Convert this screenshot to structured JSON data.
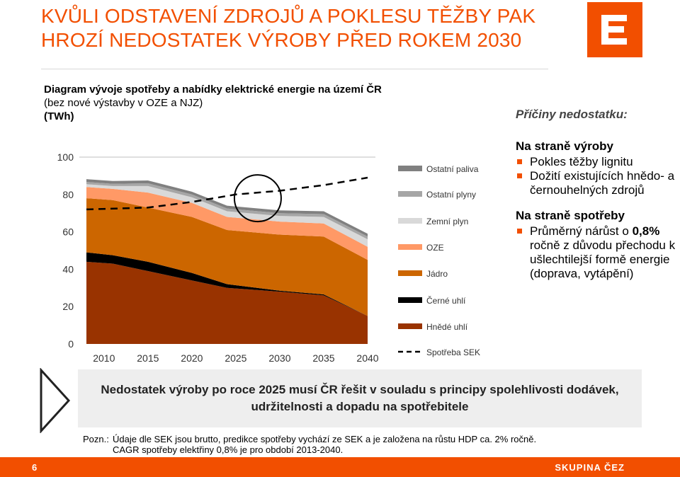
{
  "header": {
    "title_line1": "KVŮLI ODSTAVENÍ ZDROJŮ A POKLESU TĚŽBY PAK",
    "title_line2": "HROZÍ NEDOSTATEK VÝROBY PŘED ROKEM 2030",
    "logo_icon": "cez-logo-icon"
  },
  "chart_caption": {
    "line1": "Diagram vývoje spotřeby a nabídky elektrické energie na území ČR",
    "line2": "(bez nové výstavby v OZE a NJZ)",
    "unit": "(TWh)"
  },
  "chart_data": {
    "type": "area",
    "stacked": true,
    "x": [
      2008,
      2011,
      2015,
      2020,
      2024,
      2030,
      2035,
      2040
    ],
    "xticks": [
      "2010",
      "2015",
      "2020",
      "2025",
      "2030",
      "2035",
      "2040"
    ],
    "ylim": [
      0,
      100
    ],
    "yticks": [
      "0",
      "20",
      "40",
      "60",
      "80",
      "100"
    ],
    "grid": false,
    "legend_position": "right",
    "series": [
      {
        "name": "Hnědé uhlí",
        "color": "#993300",
        "values": [
          44,
          43,
          39,
          34,
          30,
          28,
          26,
          15
        ]
      },
      {
        "name": "Černé uhlí",
        "color": "#000000",
        "values": [
          5,
          4.5,
          5,
          4,
          2,
          0.5,
          0.5,
          0
        ]
      },
      {
        "name": "Jádro",
        "color": "#cc6600",
        "values": [
          29,
          29.5,
          29,
          30,
          29,
          30,
          31,
          30
        ]
      },
      {
        "name": "OZE",
        "color": "#ff9966",
        "values": [
          6,
          6,
          8,
          7.5,
          7,
          7,
          7,
          7
        ]
      },
      {
        "name": "Zemní plyn",
        "color": "#d9d9d9",
        "values": [
          1.5,
          1.5,
          3.5,
          3,
          3,
          3,
          3.5,
          4
        ]
      },
      {
        "name": "Ostatní plyny",
        "color": "#a6a6a6",
        "values": [
          1.2,
          1.2,
          1.5,
          1.5,
          1.5,
          1.5,
          1.5,
          1.5
        ]
      },
      {
        "name": "Ostatní paliva",
        "color": "#808080",
        "values": [
          1.5,
          1.5,
          1.5,
          1.5,
          1.5,
          1.5,
          1.5,
          1.5
        ]
      }
    ],
    "demand": {
      "name": "Spotřeba SEK",
      "color": "#000000",
      "x": [
        2008,
        2015,
        2020,
        2025,
        2030,
        2035,
        2040
      ],
      "values": [
        72,
        73,
        76,
        80,
        82,
        85,
        89
      ]
    },
    "highlight_circle": {
      "x": 2027.5,
      "y": 78
    }
  },
  "causes": {
    "heading": "Příčiny nedostatku:",
    "supply_title": "Na straně výroby",
    "supply_items": [
      "Pokles těžby lignitu",
      "Dožití existujících hnědo- a černouhelných zdrojů"
    ],
    "demand_title": "Na straně spotřeby",
    "demand_item_prefix": "Průměrný nárůst o ",
    "demand_item_bold": "0,8%",
    "demand_item_suffix": " ročně z důvodu přechodu k ušlechtilejší formě energie (doprava, vytápění)"
  },
  "banner": {
    "text": "Nedostatek výroby po roce 2025 musí ČR řešit v souladu s principy spolehlivosti dodávek, udržitelnosti a dopadu na spotřebitele",
    "arrow_icon": "arrow-right-icon"
  },
  "note": {
    "label": "Pozn.:",
    "line1": "Údaje dle SEK jsou brutto, predikce spotřeby vychází ze SEK a je založena na růstu HDP ca. 2% ročně.",
    "line2": "CAGR spotřeby elektřiny 0,8% je pro období 2013-2040."
  },
  "footer": {
    "page_number": "6",
    "brand": "SKUPINA ČEZ",
    "color": "#f24f00"
  }
}
